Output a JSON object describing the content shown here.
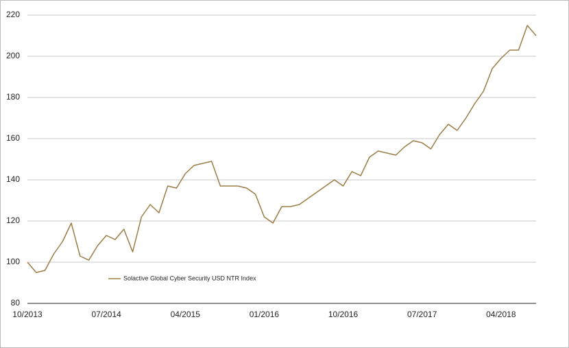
{
  "chart_data": {
    "type": "line",
    "categories": [
      "10/2013",
      null,
      null,
      null,
      null,
      null,
      null,
      null,
      null,
      "07/2014",
      null,
      null,
      null,
      null,
      null,
      null,
      null,
      null,
      "04/2015",
      null,
      null,
      null,
      null,
      null,
      null,
      null,
      null,
      "01/2016",
      null,
      null,
      null,
      null,
      null,
      null,
      null,
      null,
      "10/2016",
      null,
      null,
      null,
      null,
      null,
      null,
      null,
      null,
      "07/2017",
      null,
      null,
      null,
      null,
      null,
      null,
      null,
      null,
      "04/2018",
      null,
      null,
      null,
      null
    ],
    "series": [
      {
        "name": "Solactive Global Cyber Security USD NTR Index",
        "color": "#9b7b45",
        "values": [
          100,
          95,
          96,
          104,
          110,
          119,
          103,
          101,
          108,
          113,
          111,
          116,
          105,
          122,
          128,
          124,
          137,
          136,
          143,
          147,
          148,
          149,
          137,
          137,
          137,
          136,
          133,
          122,
          119,
          127,
          127,
          128,
          131,
          134,
          137,
          140,
          137,
          144,
          142,
          151,
          154,
          153,
          152,
          156,
          159,
          158,
          155,
          162,
          167,
          164,
          170,
          177,
          183,
          194,
          199,
          203,
          203,
          215,
          210
        ]
      }
    ],
    "ylim": [
      80,
      220
    ],
    "yticks": [
      80,
      100,
      120,
      140,
      160,
      180,
      200,
      220
    ],
    "grid": true
  }
}
